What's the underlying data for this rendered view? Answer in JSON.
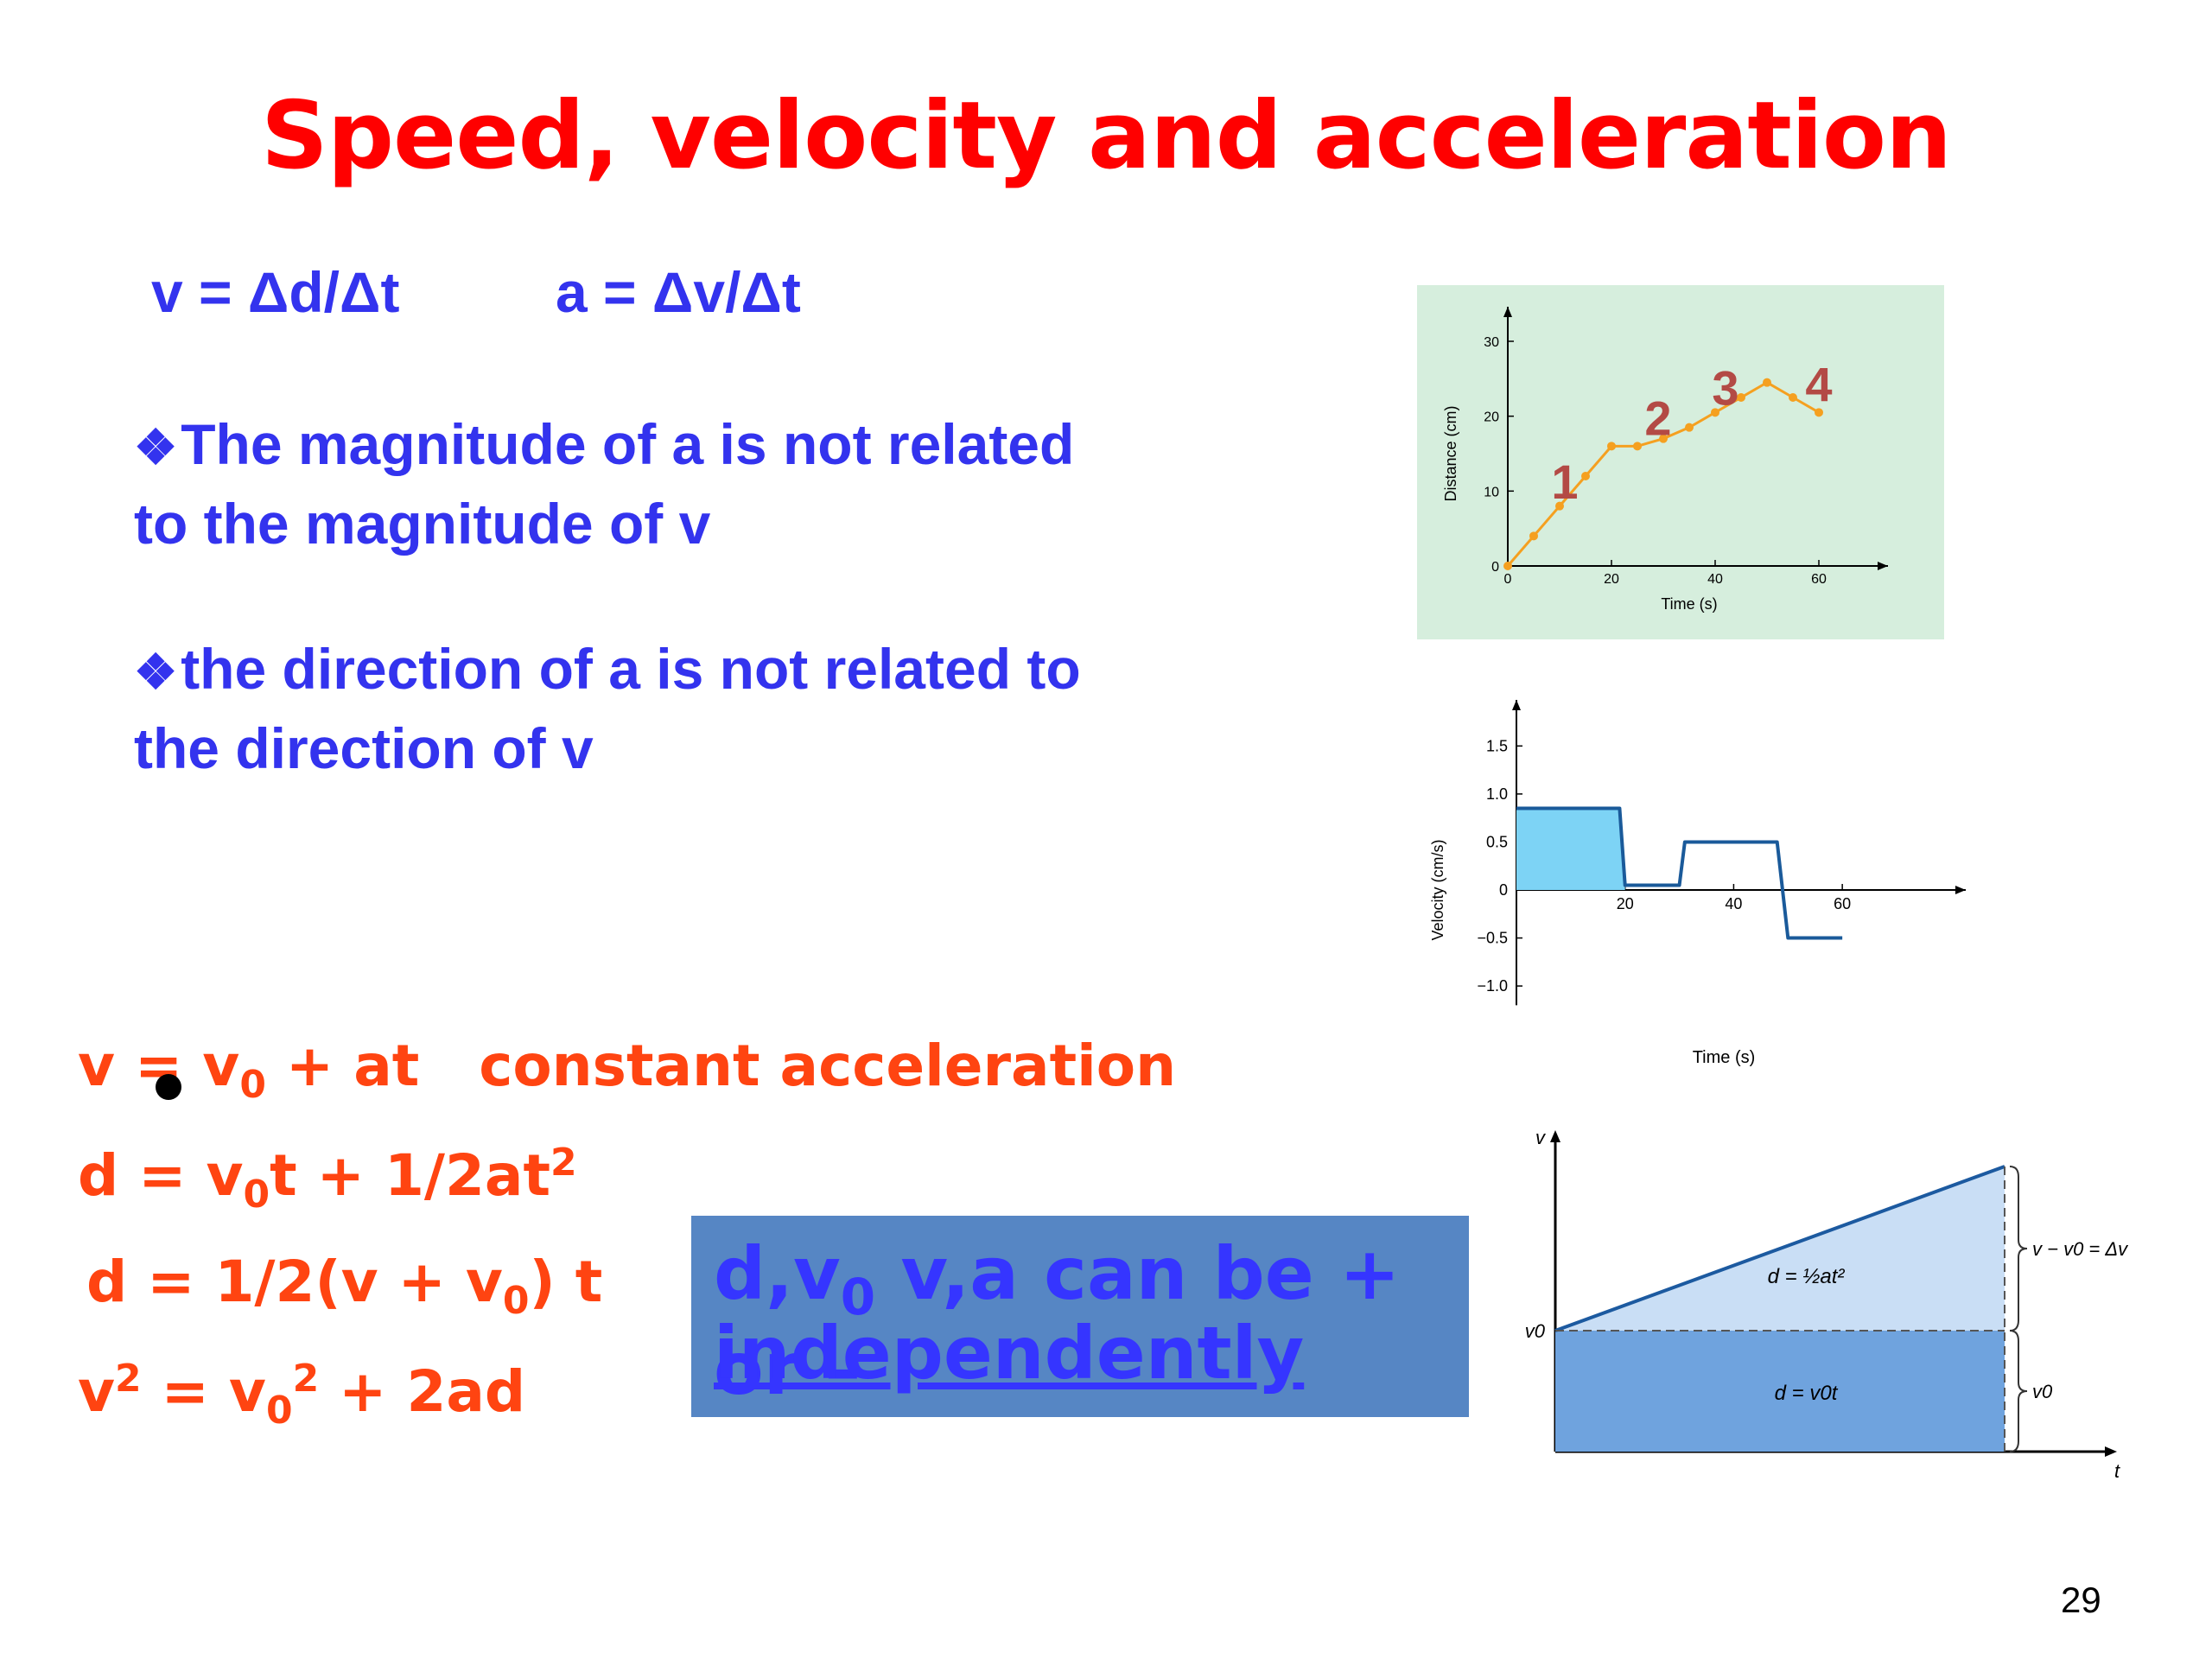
{
  "slide": {
    "title": "Speed, velocity and acceleration",
    "formula_v": "v = Δd/Δt",
    "formula_a": "a = Δv/Δt",
    "bullets": [
      {
        "line1": "The magnitude of a is not related",
        "line2": "to the magnitude of v"
      },
      {
        "line1": "the direction of a is not related to",
        "line2": "the direction of v"
      }
    ],
    "bullet_symbol": "❖",
    "equations": {
      "eq1_label": "constant acceleration"
    },
    "box": {
      "line1_a": "d,v",
      "line1_sub": "0",
      "line1_b": " v,a can be + or –",
      "line2": "independently",
      "background": "#5686c4",
      "text_color": "#3535ff"
    },
    "page_number": "29",
    "colors": {
      "title": "#ff0000",
      "blue_text": "#3333ee",
      "equations": "#ff4411"
    }
  },
  "chart_data": [
    {
      "type": "line",
      "xlabel": "Time (s)",
      "ylabel": "Distance (cm)",
      "xlim": [
        0,
        70
      ],
      "ylim": [
        0,
        30
      ],
      "x_ticks": [
        0,
        20,
        40,
        60
      ],
      "y_ticks": [
        0,
        10,
        20,
        30
      ],
      "points": [
        [
          0,
          0
        ],
        [
          5,
          4
        ],
        [
          10,
          8
        ],
        [
          15,
          12
        ],
        [
          20,
          16
        ],
        [
          25,
          16
        ],
        [
          30,
          17
        ],
        [
          35,
          18.5
        ],
        [
          40,
          20.5
        ],
        [
          45,
          22.5
        ],
        [
          50,
          24.5
        ],
        [
          55,
          22.5
        ],
        [
          60,
          20.5
        ]
      ],
      "point_labels": [
        {
          "text": "1",
          "x": 11,
          "y": 9
        },
        {
          "text": "2",
          "x": 29,
          "y": 17.5
        },
        {
          "text": "3",
          "x": 42,
          "y": 21.5
        },
        {
          "text": "4",
          "x": 60,
          "y": 22
        }
      ],
      "background": "#d6eedd",
      "line_color": "#f5a020",
      "label_color": "#b34a45"
    },
    {
      "type": "area",
      "xlabel": "Time (s)",
      "ylabel": "Velocity (cm/s)",
      "xlim": [
        0,
        70
      ],
      "ylim": [
        -1.2,
        1.8
      ],
      "x_ticks": [
        20,
        40,
        60
      ],
      "y_ticks": [
        1.5,
        1.0,
        0.5,
        0,
        -0.5,
        -1.0
      ],
      "points": [
        [
          0,
          0.85
        ],
        [
          19,
          0.85
        ],
        [
          20,
          0.05
        ],
        [
          30,
          0.05
        ],
        [
          31,
          0.5
        ],
        [
          48,
          0.5
        ],
        [
          50,
          -0.5
        ],
        [
          60,
          -0.5
        ]
      ],
      "shaded_region": [
        0,
        20
      ],
      "fill_color": "#7dd3f5",
      "line_color": "#1a5a9a"
    },
    {
      "type": "area",
      "xlabel": "t",
      "ylabel": "v",
      "v0_label": "v0",
      "annotations": {
        "upper_area": "d = ½at²",
        "lower_area": "d = v0t",
        "upper_brace": "v − v0 = Δv",
        "lower_brace": "v0"
      },
      "v0": 1,
      "v_end": 2,
      "t_end": 1,
      "upper_fill": "#c9def5",
      "lower_fill": "#6fa3de"
    }
  ]
}
